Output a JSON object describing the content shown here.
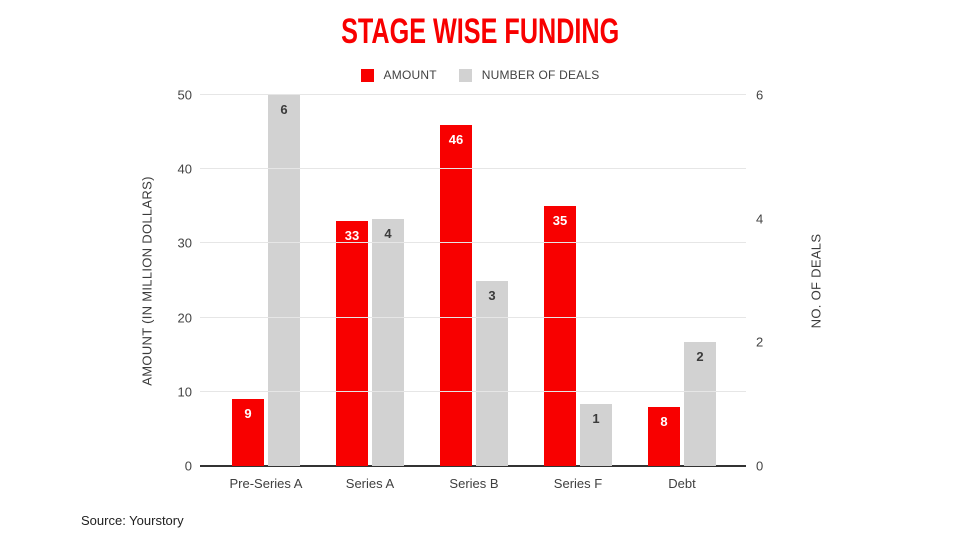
{
  "title": "STAGE WISE FUNDING",
  "title_color": "#f80000",
  "source": "Source: Yourstory",
  "chart_data": {
    "type": "bar",
    "title": "STAGE WISE FUNDING",
    "categories": [
      "Pre-Series A",
      "Series A",
      "Series B",
      "Series F",
      "Debt"
    ],
    "series": [
      {
        "name": "AMOUNT",
        "axis": "left",
        "color": "#f80000",
        "label_color": "#ffffff",
        "values": [
          9,
          33,
          46,
          35,
          8
        ]
      },
      {
        "name": "NUMBER OF DEALS",
        "axis": "right",
        "color": "#d2d2d2",
        "label_color": "#3b3b3b",
        "values": [
          6,
          4,
          3,
          1,
          2
        ]
      }
    ],
    "left_axis": {
      "title": "AMOUNT (IN MILLION DOLLARS)",
      "min": 0,
      "max": 50,
      "ticks": [
        0,
        10,
        20,
        30,
        40,
        50
      ]
    },
    "right_axis": {
      "title": "NO. OF DEALS",
      "min": 0,
      "max": 6,
      "ticks": [
        0,
        2,
        4,
        6
      ]
    },
    "grid": "horizontal",
    "legend_position": "top",
    "data_labels": "inside-top"
  }
}
